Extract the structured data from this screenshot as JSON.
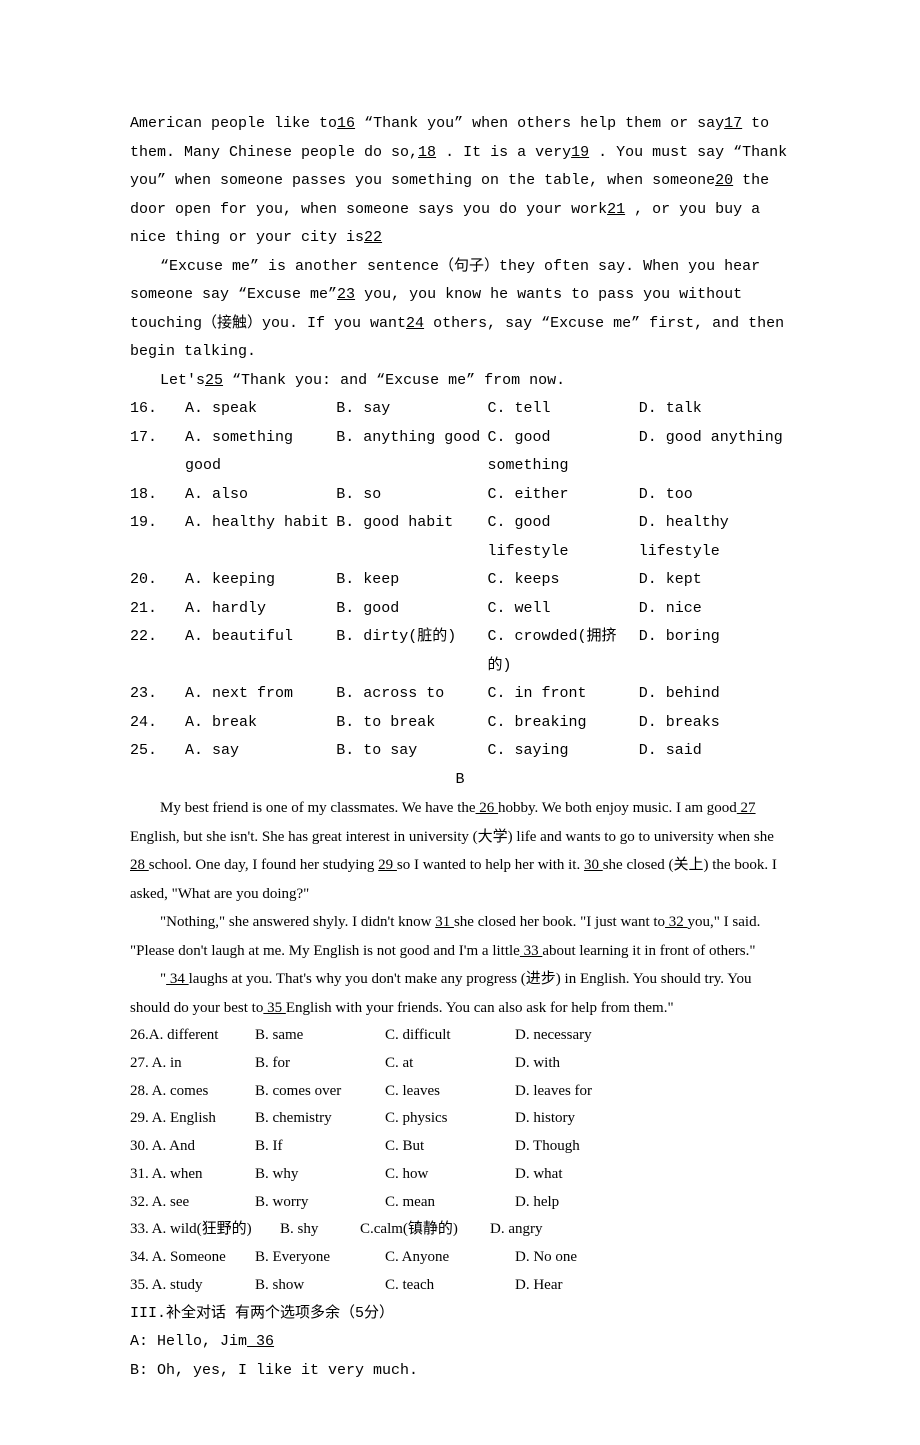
{
  "passageA": {
    "p1a": "American people like to",
    "b16": "16",
    "p1b": "“Thank you” when others help them or say",
    "b17": "17",
    "p1c": "to them. Many Chinese people do so,",
    "b18": "18",
    "p1d": ". It is a very",
    "b19": "19",
    "p1e": ". You must say “Thank you” when someone passes you something on the table, when someone",
    "b20": "20",
    "p1f": "the door open for you, when someone says you do your work",
    "b21": "21",
    "p1g": ", or you buy a nice thing or your city is",
    "b22": "22",
    "p2a": "“Excuse me” is another sentence（句子）they often say. When you hear someone say “Excuse me”",
    "b23": "23",
    "p2b": "you, you know he wants to pass you without touching（接触）you. If you want",
    "b24": "24",
    "p2c": "others, say “Excuse me” first, and then begin talking.",
    "p3a": "Let's",
    "b25": "25",
    "p3b": "“Thank you: and “Excuse me” from now."
  },
  "qA": {
    "q16": {
      "n": "16.",
      "a": "A. speak",
      "b": "B. say",
      "c": "C. tell",
      "d": "D. talk"
    },
    "q17": {
      "n": "17.",
      "a": "A. something good",
      "b": "B. anything good",
      "c": "C. good something",
      "d": "D. good anything"
    },
    "q18": {
      "n": "18.",
      "a": "A. also",
      "b": "B. so",
      "c": "C. either",
      "d": "D. too"
    },
    "q19": {
      "n": "19.",
      "a": "A. healthy habit",
      "b": "B. good habit",
      "c": "C. good lifestyle",
      "d": "D. healthy lifestyle"
    },
    "q20": {
      "n": "20.",
      "a": "A. keeping",
      "b": "B. keep",
      "c": "C. keeps",
      "d": "D. kept"
    },
    "q21": {
      "n": "21.",
      "a": "A. hardly",
      "b": "B. good",
      "c": "C. well",
      "d": "D. nice"
    },
    "q22": {
      "n": "22.",
      "a": "A. beautiful",
      "b": "B. dirty(脏的)",
      "c": "C. crowded(拥挤的)",
      "d": "D. boring"
    },
    "q23": {
      "n": "23.",
      "a": "A. next from",
      "b": "B. across to",
      "c": "C. in front",
      "d": "D. behind"
    },
    "q24": {
      "n": "24.",
      "a": "A. break",
      "b": "B. to break",
      "c": "C. breaking",
      "d": "D. breaks"
    },
    "q25": {
      "n": "25.",
      "a": "A. say",
      "b": "B. to say",
      "c": "C. saying",
      "d": "D. said"
    }
  },
  "headingB": "B",
  "passageB": {
    "p1a": "My best friend is one of my classmates. We have the",
    "b26": "  26  ",
    "p1b": "hobby. We both enjoy music. I am good",
    "b27": "  27  ",
    "p1c": "English, but she isn't. She has great interest in university (大学) life and wants to go to university when she",
    "b28": "  28  ",
    "p1d": "school. One day, I found her studying ",
    "b29": "  29  ",
    "p1e": "so I wanted to help her with it. ",
    "b30": "  30  ",
    "p1f": "she closed (关上) the book. I asked, \"What are you doing?\"",
    "p2a": "\"Nothing,\" she answered shyly. I didn't know ",
    "b31": "  31  ",
    "p2b": "she closed her book. \"I just want to",
    "b32": "  32  ",
    "p2c": " you,\" I said. \"Please don't laugh at me. My English is not good and I'm a little",
    "b33": "  33  ",
    "p2d": " about learning it in front of others.\"",
    "p3a": "\"",
    "b34": "  34  ",
    "p3b": "laughs at you. That's why you don't make any progress (进步) in English. You should try. You should do your best to",
    "b35": "  35  ",
    "p3c": "English with your friends. You can also ask for help from them.\""
  },
  "qB": {
    "q26": {
      "n": "26.A. different",
      "b": "B. same",
      "c": "C. difficult",
      "d": "D. necessary"
    },
    "q27": {
      "n": "27. A. in",
      "b": "B. for",
      "c": "C. at",
      "d": "D. with"
    },
    "q28": {
      "n": "28. A. comes",
      "b": "B. comes over",
      "c": "C. leaves",
      "d": "D. leaves for"
    },
    "q29": {
      "n": "29. A. English",
      "b": "B. chemistry",
      "c": "C. physics",
      "d": "D. history"
    },
    "q30": {
      "n": "30. A. And",
      "b": "B. If",
      "c": "C. But",
      "d": "D. Though"
    },
    "q31": {
      "n": "31. A. when",
      "b": "B. why",
      "c": "C. how",
      "d": "D. what"
    },
    "q32": {
      "n": "32. A. see",
      "b": "B. worry",
      "c": "C. mean",
      "d": "D. help"
    },
    "q33": {
      "n": "33. A. wild(狂野的)",
      "b": "B. shy",
      "c": "C.calm(镇静的)",
      "d": "D. angry"
    },
    "q34": {
      "n": "34. A. Someone",
      "b": "B. Everyone",
      "c": "C. Anyone",
      "d": "D. No one"
    },
    "q35": {
      "n": "35. A. study",
      "b": "B. show",
      "c": "C. teach",
      "d": "D. Hear"
    }
  },
  "section3": {
    "title": "III.补全对话 有两个选项多余（5分）",
    "lineA_a": " A: Hello, Jim",
    "b36": "  36   ",
    "lineB": " B: Oh, yes, I like it very much."
  }
}
